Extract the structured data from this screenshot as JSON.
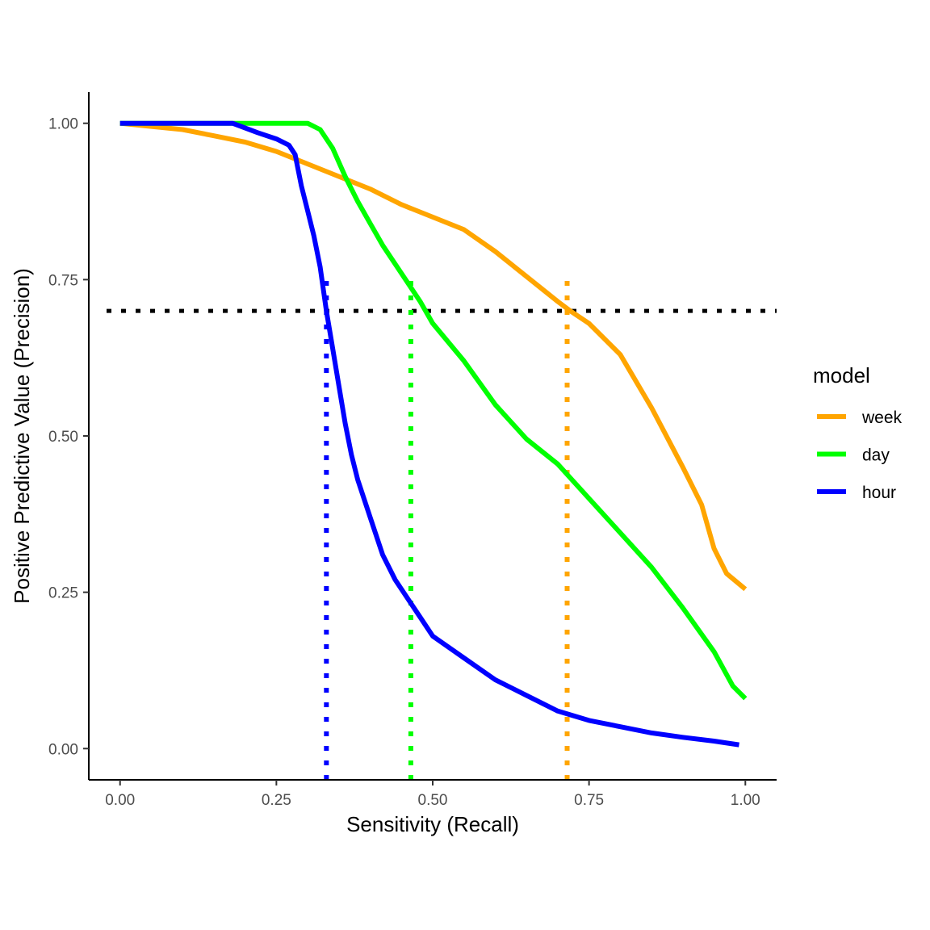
{
  "chart_data": {
    "type": "line",
    "xlabel": "Sensitivity (Recall)",
    "ylabel": "Positive Predictive Value (Precision)",
    "xlim": [
      -0.05,
      1.05
    ],
    "ylim": [
      -0.05,
      1.05
    ],
    "x_ticks": [
      0,
      0.25,
      0.5,
      0.75,
      1
    ],
    "x_tick_labels": [
      "0.00",
      "0.25",
      "0.50",
      "0.75",
      "1.00"
    ],
    "y_ticks": [
      0,
      0.25,
      0.5,
      0.75,
      1
    ],
    "y_tick_labels": [
      "0.00",
      "0.25",
      "0.50",
      "0.75",
      "1.00"
    ],
    "grid": false,
    "legend": {
      "title": "model",
      "position": "right"
    },
    "series": [
      {
        "name": "week",
        "color": "#FFA500",
        "points": [
          [
            0.0,
            1.0
          ],
          [
            0.05,
            0.995
          ],
          [
            0.1,
            0.99
          ],
          [
            0.15,
            0.98
          ],
          [
            0.2,
            0.97
          ],
          [
            0.25,
            0.955
          ],
          [
            0.3,
            0.935
          ],
          [
            0.35,
            0.915
          ],
          [
            0.4,
            0.895
          ],
          [
            0.45,
            0.87
          ],
          [
            0.5,
            0.85
          ],
          [
            0.55,
            0.83
          ],
          [
            0.6,
            0.795
          ],
          [
            0.65,
            0.755
          ],
          [
            0.7,
            0.715
          ],
          [
            0.72,
            0.7
          ],
          [
            0.75,
            0.68
          ],
          [
            0.8,
            0.63
          ],
          [
            0.85,
            0.545
          ],
          [
            0.9,
            0.45
          ],
          [
            0.93,
            0.39
          ],
          [
            0.95,
            0.32
          ],
          [
            0.97,
            0.28
          ],
          [
            1.0,
            0.255
          ]
        ]
      },
      {
        "name": "day",
        "color": "#00FF00",
        "points": [
          [
            0.0,
            1.0
          ],
          [
            0.2,
            1.0
          ],
          [
            0.3,
            1.0
          ],
          [
            0.32,
            0.99
          ],
          [
            0.34,
            0.96
          ],
          [
            0.36,
            0.915
          ],
          [
            0.38,
            0.875
          ],
          [
            0.4,
            0.84
          ],
          [
            0.42,
            0.805
          ],
          [
            0.44,
            0.775
          ],
          [
            0.46,
            0.745
          ],
          [
            0.48,
            0.715
          ],
          [
            0.5,
            0.68
          ],
          [
            0.55,
            0.62
          ],
          [
            0.6,
            0.55
          ],
          [
            0.65,
            0.495
          ],
          [
            0.7,
            0.455
          ],
          [
            0.75,
            0.4
          ],
          [
            0.8,
            0.345
          ],
          [
            0.85,
            0.29
          ],
          [
            0.9,
            0.225
          ],
          [
            0.95,
            0.155
          ],
          [
            0.98,
            0.1
          ],
          [
            1.0,
            0.08
          ]
        ]
      },
      {
        "name": "hour",
        "color": "#0000FF",
        "points": [
          [
            0.0,
            1.0
          ],
          [
            0.1,
            1.0
          ],
          [
            0.18,
            1.0
          ],
          [
            0.22,
            0.985
          ],
          [
            0.25,
            0.975
          ],
          [
            0.27,
            0.965
          ],
          [
            0.28,
            0.95
          ],
          [
            0.29,
            0.9
          ],
          [
            0.3,
            0.86
          ],
          [
            0.31,
            0.82
          ],
          [
            0.32,
            0.77
          ],
          [
            0.33,
            0.7
          ],
          [
            0.34,
            0.64
          ],
          [
            0.35,
            0.58
          ],
          [
            0.36,
            0.52
          ],
          [
            0.37,
            0.47
          ],
          [
            0.38,
            0.43
          ],
          [
            0.4,
            0.37
          ],
          [
            0.42,
            0.31
          ],
          [
            0.44,
            0.27
          ],
          [
            0.46,
            0.24
          ],
          [
            0.48,
            0.21
          ],
          [
            0.5,
            0.18
          ],
          [
            0.55,
            0.145
          ],
          [
            0.6,
            0.11
          ],
          [
            0.65,
            0.085
          ],
          [
            0.7,
            0.06
          ],
          [
            0.75,
            0.045
          ],
          [
            0.8,
            0.035
          ],
          [
            0.85,
            0.025
          ],
          [
            0.9,
            0.018
          ],
          [
            0.95,
            0.012
          ],
          [
            0.99,
            0.006
          ]
        ]
      }
    ],
    "reference_lines": [
      {
        "orientation": "horizontal",
        "y": 0.7,
        "color": "#000000",
        "style": "dotted"
      },
      {
        "orientation": "vertical",
        "x": 0.33,
        "y_from": -0.05,
        "y_to": 0.75,
        "color": "#0000FF",
        "style": "dotted"
      },
      {
        "orientation": "vertical",
        "x": 0.465,
        "y_from": -0.05,
        "y_to": 0.75,
        "color": "#00FF00",
        "style": "dotted"
      },
      {
        "orientation": "vertical",
        "x": 0.715,
        "y_from": -0.05,
        "y_to": 0.75,
        "color": "#FFA500",
        "style": "dotted"
      }
    ]
  }
}
